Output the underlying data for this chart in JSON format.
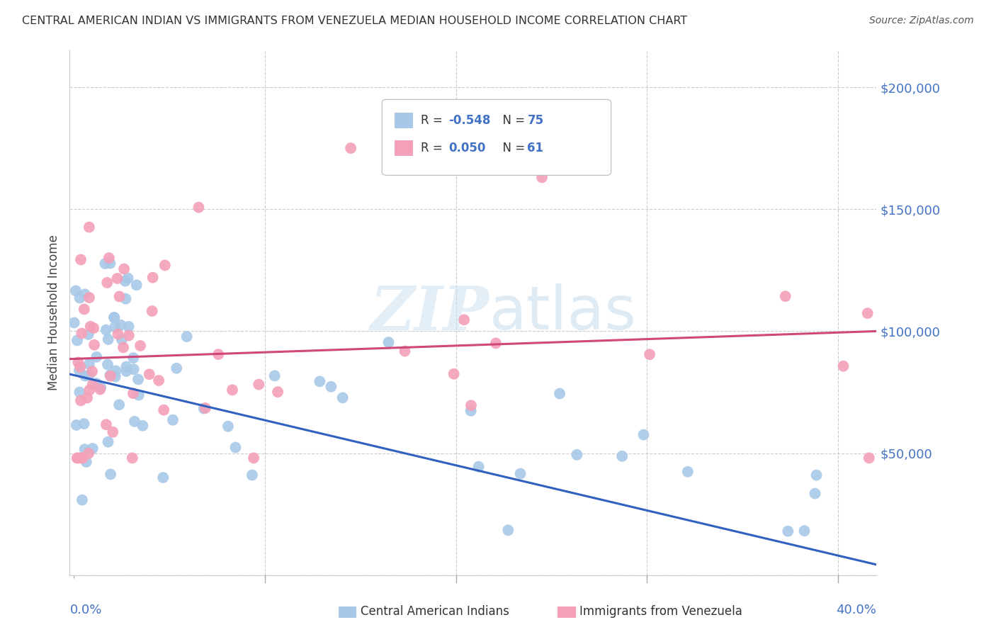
{
  "title": "CENTRAL AMERICAN INDIAN VS IMMIGRANTS FROM VENEZUELA MEDIAN HOUSEHOLD INCOME CORRELATION CHART",
  "source": "Source: ZipAtlas.com",
  "ylabel": "Median Household Income",
  "watermark_zip": "ZIP",
  "watermark_atlas": "atlas",
  "blue_R": -0.548,
  "blue_N": 75,
  "pink_R": 0.05,
  "pink_N": 61,
  "blue_color": "#a8c8e8",
  "pink_color": "#f4a0b8",
  "blue_line_color": "#3060c0",
  "pink_line_color": "#d04878",
  "axis_value_color": "#4472c4",
  "title_color": "#333333",
  "source_color": "#555555",
  "background_color": "#ffffff",
  "grid_color": "#cccccc",
  "ylabel_color": "#444444",
  "ylim": [
    0,
    215000
  ],
  "xlim": [
    -0.002,
    0.42
  ],
  "yticks": [
    0,
    50000,
    100000,
    150000,
    200000
  ],
  "ytick_labels": [
    "",
    "$50,000",
    "$100,000",
    "$150,000",
    "$200,000"
  ],
  "blue_seed": 12,
  "pink_seed": 99
}
